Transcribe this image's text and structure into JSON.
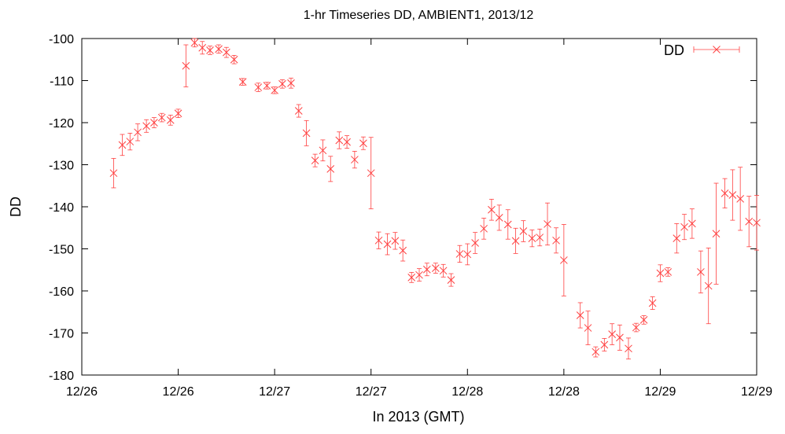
{
  "chart_data": {
    "type": "scatter",
    "title": "1-hr Timeseries DD, AMBIENT1, 2013/12",
    "xlabel": "In 2013 (GMT)",
    "ylabel": "DD",
    "ylim": [
      -180,
      -100
    ],
    "y_ticks": [
      "-100",
      "-110",
      "-120",
      "-130",
      "-140",
      "-150",
      "-160",
      "-170",
      "-180"
    ],
    "x_ticks": [
      "12/26",
      "12/26",
      "12/27",
      "12/27",
      "12/28",
      "12/28",
      "12/29",
      "12/29"
    ],
    "grid": false,
    "legend_position": "top-right",
    "series_color": "#ff4040",
    "series": [
      {
        "name": "DD",
        "x": [
          0.33,
          0.42,
          0.5,
          0.58,
          0.67,
          0.75,
          0.83,
          0.92,
          1.0,
          1.08,
          1.17,
          1.25,
          1.33,
          1.42,
          1.5,
          1.58,
          1.67,
          1.83,
          1.92,
          2.0,
          2.08,
          2.17,
          2.25,
          2.33,
          2.42,
          2.5,
          2.58,
          2.67,
          2.75,
          2.83,
          2.92,
          3.0,
          3.08,
          3.17,
          3.25,
          3.33,
          3.42,
          3.5,
          3.58,
          3.67,
          3.75,
          3.83,
          3.92,
          4.0,
          4.08,
          4.17,
          4.25,
          4.33,
          4.42,
          4.5,
          4.58,
          4.67,
          4.75,
          4.83,
          4.92,
          5.0,
          5.17,
          5.25,
          5.33,
          5.42,
          5.5,
          5.58,
          5.67,
          5.75,
          5.83,
          5.92,
          6.0,
          6.08,
          6.17,
          6.25,
          6.33,
          6.42,
          6.5,
          6.58,
          6.67,
          6.75,
          6.83,
          6.92,
          7.0
        ],
        "y": [
          -132.0,
          -125.3,
          -124.5,
          -122.3,
          -120.8,
          -120.0,
          -118.8,
          -119.4,
          -117.8,
          -106.5,
          -101.0,
          -102.2,
          -102.8,
          -102.5,
          -103.3,
          -105.0,
          -110.3,
          -111.6,
          -111.2,
          -112.3,
          -110.8,
          -110.6,
          -117.2,
          -122.5,
          -129.0,
          -126.6,
          -131.0,
          -124.2,
          -124.6,
          -128.8,
          -124.9,
          -132.0,
          -148.0,
          -148.9,
          -148.1,
          -150.4,
          -156.8,
          -156.2,
          -154.9,
          -154.6,
          -155.2,
          -157.4,
          -151.2,
          -151.3,
          -148.6,
          -145.2,
          -140.7,
          -142.6,
          -144.2,
          -148.1,
          -145.8,
          -147.5,
          -147.3,
          -144.1,
          -148.0,
          -152.7,
          -165.8,
          -168.8,
          -174.5,
          -172.8,
          -170.3,
          -171.1,
          -173.7,
          -168.7,
          -166.9,
          -162.9,
          -155.8,
          -155.5,
          -147.5,
          -144.8,
          -144.0,
          -155.5,
          -158.8,
          -146.4,
          -136.8,
          -137.2,
          -138.1,
          -143.5,
          -143.8
        ],
        "err": [
          3.5,
          2.5,
          2.0,
          2.0,
          1.5,
          1.2,
          1.0,
          1.2,
          1.0,
          5.0,
          1.0,
          1.5,
          1.0,
          1.0,
          1.2,
          1.0,
          0.8,
          1.0,
          0.8,
          0.8,
          1.0,
          1.2,
          1.5,
          3.0,
          1.5,
          2.5,
          3.0,
          2.0,
          1.5,
          2.0,
          1.5,
          8.5,
          2.0,
          2.5,
          2.0,
          2.5,
          1.2,
          1.5,
          1.5,
          1.2,
          1.5,
          1.5,
          2.0,
          2.5,
          2.5,
          2.5,
          2.5,
          3.0,
          3.5,
          3.0,
          2.5,
          2.0,
          2.0,
          5.0,
          3.0,
          8.5,
          3.0,
          4.0,
          1.2,
          1.5,
          2.5,
          3.0,
          2.5,
          1.0,
          1.0,
          1.5,
          2.0,
          1.0,
          3.5,
          3.0,
          3.5,
          5.0,
          9.0,
          12.0,
          3.5,
          6.0,
          7.5,
          6.0,
          6.5
        ]
      }
    ]
  }
}
